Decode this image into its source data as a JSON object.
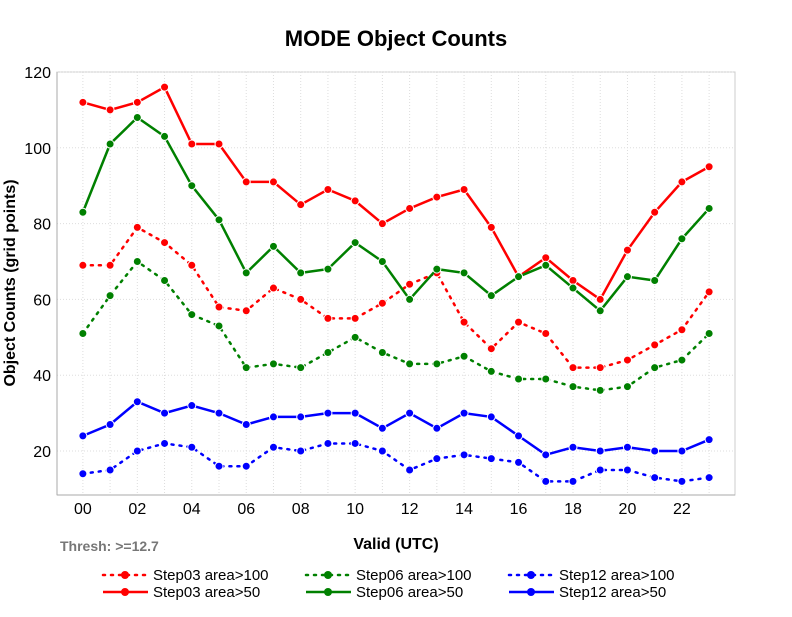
{
  "chart_data": {
    "type": "line",
    "title": "MODE Object Counts",
    "xlabel": "Valid (UTC)",
    "ylabel": "Object Counts (grid points)",
    "annotation": "Thresh: >=12.7",
    "x": [
      0,
      1,
      2,
      3,
      4,
      5,
      6,
      7,
      8,
      9,
      10,
      11,
      12,
      13,
      14,
      15,
      16,
      17,
      18,
      19,
      20,
      21,
      22,
      23
    ],
    "xticks": [
      0,
      2,
      4,
      6,
      8,
      10,
      12,
      14,
      16,
      18,
      20,
      22
    ],
    "xtick_labels": [
      "00",
      "02",
      "04",
      "06",
      "08",
      "10",
      "12",
      "14",
      "16",
      "18",
      "20",
      "22"
    ],
    "yticks": [
      20,
      40,
      60,
      80,
      100,
      120
    ],
    "ytick_labels": [
      "20",
      "40",
      "60",
      "80",
      "100",
      "120"
    ],
    "xlim": [
      -0.95,
      23.95
    ],
    "ylim": [
      8.4,
      120
    ],
    "grid": true,
    "legend_placement": "bottom",
    "series": [
      {
        "name": "Step03 area>100",
        "color": "#ff0000",
        "style": "dotted",
        "values": [
          69,
          69,
          79,
          75,
          69,
          58,
          57,
          63,
          60,
          55,
          55,
          59,
          64,
          67,
          54,
          47,
          54,
          51,
          42,
          42,
          44,
          48,
          52,
          62
        ]
      },
      {
        "name": "Step06 area>100",
        "color": "#008000",
        "style": "dotted",
        "values": [
          51,
          61,
          70,
          65,
          56,
          53,
          42,
          43,
          42,
          46,
          50,
          46,
          43,
          43,
          45,
          41,
          39,
          39,
          37,
          36,
          37,
          42,
          44,
          51
        ]
      },
      {
        "name": "Step12 area>100",
        "color": "#0000ff",
        "style": "dotted",
        "values": [
          14,
          15,
          20,
          22,
          21,
          16,
          16,
          21,
          20,
          22,
          22,
          20,
          15,
          18,
          19,
          18,
          17,
          12,
          12,
          15,
          15,
          13,
          12,
          13
        ]
      },
      {
        "name": "Step03 area>50",
        "color": "#ff0000",
        "style": "solid",
        "values": [
          112,
          110,
          112,
          116,
          101,
          101,
          91,
          91,
          85,
          89,
          86,
          80,
          84,
          87,
          89,
          79,
          66,
          71,
          65,
          60,
          73,
          83,
          91,
          95
        ]
      },
      {
        "name": "Step06 area>50",
        "color": "#008000",
        "style": "solid",
        "values": [
          83,
          101,
          108,
          103,
          90,
          81,
          67,
          74,
          67,
          68,
          75,
          70,
          60,
          68,
          67,
          61,
          66,
          69,
          63,
          57,
          66,
          65,
          76,
          84
        ]
      },
      {
        "name": "Step12 area>50",
        "color": "#0000ff",
        "style": "solid",
        "values": [
          24,
          27,
          33,
          30,
          32,
          30,
          27,
          29,
          29,
          30,
          30,
          26,
          30,
          26,
          30,
          29,
          24,
          19,
          21,
          20,
          21,
          20,
          20,
          23
        ]
      }
    ]
  }
}
